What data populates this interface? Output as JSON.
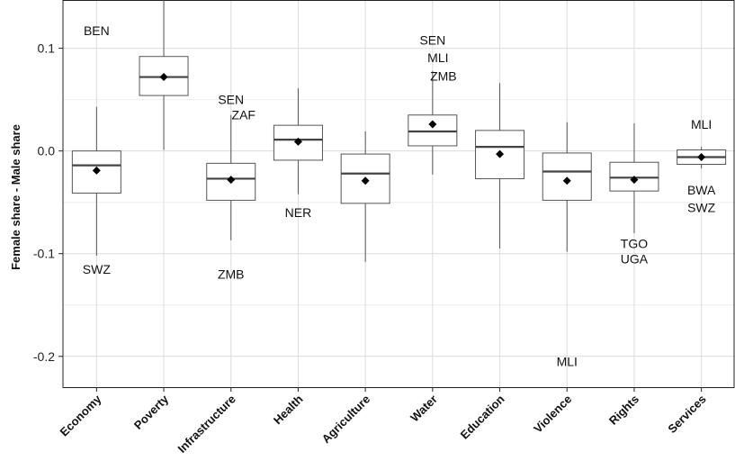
{
  "chart_data": {
    "type": "boxplot",
    "ylabel": "Female share - Male share",
    "ylim": [
      -0.23,
      0.147
    ],
    "yticks": [
      0.1,
      0.0,
      -0.1,
      -0.2
    ],
    "ytick_labels": [
      "0.1",
      "0.0",
      "-0.1",
      "-0.2"
    ],
    "grid": true,
    "categories": [
      "Economy",
      "Poverty",
      "Infrastructure",
      "Health",
      "Agriculture",
      "Water",
      "Education",
      "Violence",
      "Rights",
      "Services"
    ],
    "boxes": [
      {
        "category": "Economy",
        "whisker_low": -0.102,
        "q1": -0.041,
        "median": -0.014,
        "q3": 0.0,
        "whisker_high": 0.043,
        "mean": -0.019
      },
      {
        "category": "Poverty",
        "whisker_low": 0.001,
        "q1": 0.054,
        "median": 0.072,
        "q3": 0.092,
        "whisker_high": 0.148,
        "mean": 0.072
      },
      {
        "category": "Infrastructure",
        "whisker_low": -0.087,
        "q1": -0.048,
        "median": -0.027,
        "q3": -0.012,
        "whisker_high": 0.035,
        "mean": -0.028
      },
      {
        "category": "Health",
        "whisker_low": -0.042,
        "q1": -0.009,
        "median": 0.011,
        "q3": 0.025,
        "whisker_high": 0.061,
        "mean": 0.009
      },
      {
        "category": "Agriculture",
        "whisker_low": -0.108,
        "q1": -0.051,
        "median": -0.022,
        "q3": -0.003,
        "whisker_high": 0.019,
        "mean": -0.029
      },
      {
        "category": "Water",
        "whisker_low": -0.023,
        "q1": 0.005,
        "median": 0.019,
        "q3": 0.035,
        "whisker_high": 0.078,
        "mean": 0.026
      },
      {
        "category": "Education",
        "whisker_low": -0.095,
        "q1": -0.027,
        "median": 0.004,
        "q3": 0.02,
        "whisker_high": 0.066,
        "mean": -0.003
      },
      {
        "category": "Violence",
        "whisker_low": -0.098,
        "q1": -0.048,
        "median": -0.02,
        "q3": -0.002,
        "whisker_high": 0.028,
        "mean": -0.029
      },
      {
        "category": "Rights",
        "whisker_low": -0.08,
        "q1": -0.039,
        "median": -0.026,
        "q3": -0.011,
        "whisker_high": 0.027,
        "mean": -0.028
      },
      {
        "category": "Services",
        "whisker_low": -0.017,
        "q1": -0.013,
        "median": -0.006,
        "q3": 0.001,
        "whisker_high": 0.004,
        "mean": -0.006
      }
    ],
    "annotations": [
      {
        "text": "BEN",
        "category": "Economy",
        "y": 0.117
      },
      {
        "text": "SWZ",
        "category": "Economy",
        "y": -0.115
      },
      {
        "text": "SEN",
        "category": "Infrastructure",
        "y": 0.05
      },
      {
        "text": "ZAF",
        "category": "Infrastructure",
        "y": 0.035
      },
      {
        "text": "ZMB",
        "category": "Infrastructure",
        "y": -0.12
      },
      {
        "text": "NER",
        "category": "Health",
        "y": -0.06
      },
      {
        "text": "SEN",
        "category": "Water",
        "y": 0.108
      },
      {
        "text": "MLI",
        "category": "Water",
        "y": 0.091
      },
      {
        "text": "ZMB",
        "category": "Water",
        "y": 0.073
      },
      {
        "text": "MLI",
        "category": "Violence",
        "y": -0.205
      },
      {
        "text": "TGO",
        "category": "Rights",
        "y": -0.09
      },
      {
        "text": "UGA",
        "category": "Rights",
        "y": -0.105
      },
      {
        "text": "MLI",
        "category": "Services",
        "y": 0.026
      },
      {
        "text": "BWA",
        "category": "Services",
        "y": -0.038
      },
      {
        "text": "SWZ",
        "category": "Services",
        "y": -0.055
      }
    ]
  }
}
